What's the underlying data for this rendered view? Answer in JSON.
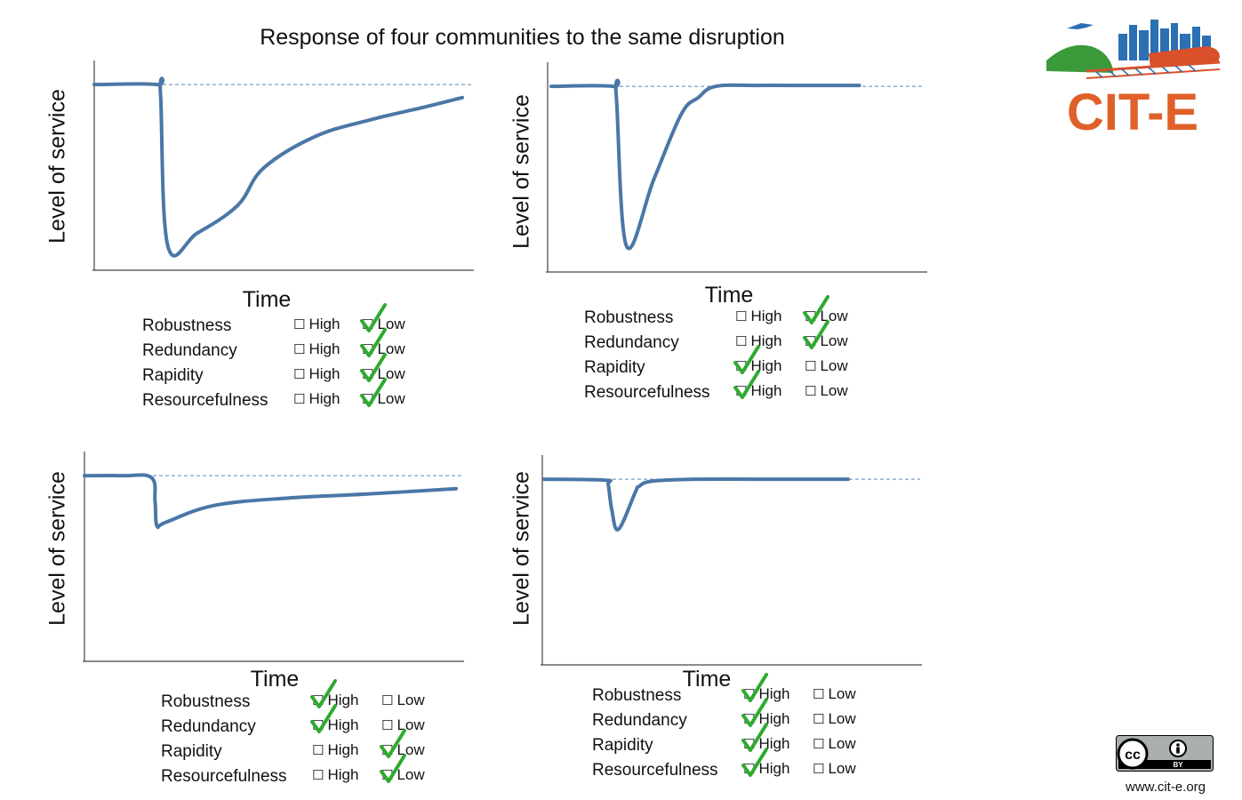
{
  "title": "Response of four communities to the same disruption",
  "chart_data": [
    {
      "type": "line",
      "ylabel": "Level of service",
      "xlabel": "Time",
      "baseline": 100,
      "ylim": [
        0,
        113
      ],
      "xlim": [
        0,
        100
      ],
      "series": [
        {
          "name": "Level of service",
          "x": [
            0,
            17,
            18,
            20,
            28,
            39,
            46,
            60,
            75,
            90,
            100
          ],
          "y": [
            100,
            100,
            95,
            13,
            20,
            35,
            55,
            72,
            81,
            88,
            93
          ]
        }
      ],
      "checklist": [
        {
          "attribute": "Robustness",
          "high_label": "High",
          "low_label": "Low",
          "selected": "Low"
        },
        {
          "attribute": "Redundancy",
          "high_label": "High",
          "low_label": "Low",
          "selected": "Low"
        },
        {
          "attribute": "Rapidity",
          "high_label": "High",
          "low_label": "Low",
          "selected": "Low"
        },
        {
          "attribute": "Resourcefulness",
          "high_label": "High",
          "low_label": "Low",
          "selected": "Low"
        }
      ]
    },
    {
      "type": "line",
      "ylabel": "Level of service",
      "xlabel": "Time",
      "baseline": 100,
      "ylim": [
        0,
        113
      ],
      "xlim": [
        0,
        100
      ],
      "series": [
        {
          "name": "Level of service",
          "x": [
            0,
            18,
            19,
            22,
            30,
            38,
            43,
            48,
            60,
            75,
            90
          ],
          "y": [
            100,
            100,
            95,
            14,
            50,
            85,
            94,
            100,
            100.5,
            100.5,
            100.5
          ]
        }
      ],
      "checklist": [
        {
          "attribute": "Robustness",
          "high_label": "High",
          "low_label": "Low",
          "selected": "Low"
        },
        {
          "attribute": "Redundancy",
          "high_label": "High",
          "low_label": "Low",
          "selected": "Low"
        },
        {
          "attribute": "Rapidity",
          "high_label": "High",
          "low_label": "Low",
          "selected": "High"
        },
        {
          "attribute": "Resourcefulness",
          "high_label": "High",
          "low_label": "Low",
          "selected": "High"
        }
      ]
    },
    {
      "type": "line",
      "ylabel": "Level of service",
      "xlabel": "Time",
      "baseline": 100,
      "ylim": [
        0,
        113
      ],
      "xlim": [
        0,
        100
      ],
      "series": [
        {
          "name": "Level of service",
          "x": [
            0,
            10,
            18,
            19,
            19.5,
            22,
            35,
            55,
            75,
            100
          ],
          "y": [
            100,
            100,
            99,
            86,
            73,
            75,
            84,
            88,
            90,
            93
          ]
        }
      ],
      "checklist": [
        {
          "attribute": "Robustness",
          "high_label": "High",
          "low_label": "Low",
          "selected": "High"
        },
        {
          "attribute": "Redundancy",
          "high_label": "High",
          "low_label": "Low",
          "selected": "High"
        },
        {
          "attribute": "Rapidity",
          "high_label": "High",
          "low_label": "Low",
          "selected": "Low"
        },
        {
          "attribute": "Resourcefulness",
          "high_label": "High",
          "low_label": "Low",
          "selected": "Low"
        }
      ]
    },
    {
      "type": "line",
      "ylabel": "Level of service",
      "xlabel": "Time",
      "baseline": 100,
      "ylim": [
        0,
        113
      ],
      "xlim": [
        0,
        100
      ],
      "series": [
        {
          "name": "Level of service",
          "x": [
            0,
            18,
            19,
            20,
            22,
            27,
            28,
            32,
            45,
            65,
            90
          ],
          "y": [
            100,
            99.5,
            97,
            84,
            73,
            93,
            96,
            99,
            100,
            100,
            100
          ]
        }
      ],
      "checklist": [
        {
          "attribute": "Robustness",
          "high_label": "High",
          "low_label": "Low",
          "selected": "High"
        },
        {
          "attribute": "Redundancy",
          "high_label": "High",
          "low_label": "Low",
          "selected": "High"
        },
        {
          "attribute": "Rapidity",
          "high_label": "High",
          "low_label": "Low",
          "selected": "High"
        },
        {
          "attribute": "Resourcefulness",
          "high_label": "High",
          "low_label": "Low",
          "selected": "High"
        }
      ]
    }
  ],
  "logo": {
    "text": "CIT-E",
    "text_color": "#e0602a",
    "city_color": "#2b6fb5",
    "hill_color": "#3a9a3a",
    "train_color": "#d9502b"
  },
  "license": {
    "cc_label": "cc",
    "by_label": "BY"
  },
  "footer": {
    "url": "www.cit-e.org"
  },
  "colors": {
    "line": "#4a77a6",
    "baseline": "#5b87b8",
    "axis": "#444444",
    "check": "#2eaa2e"
  }
}
